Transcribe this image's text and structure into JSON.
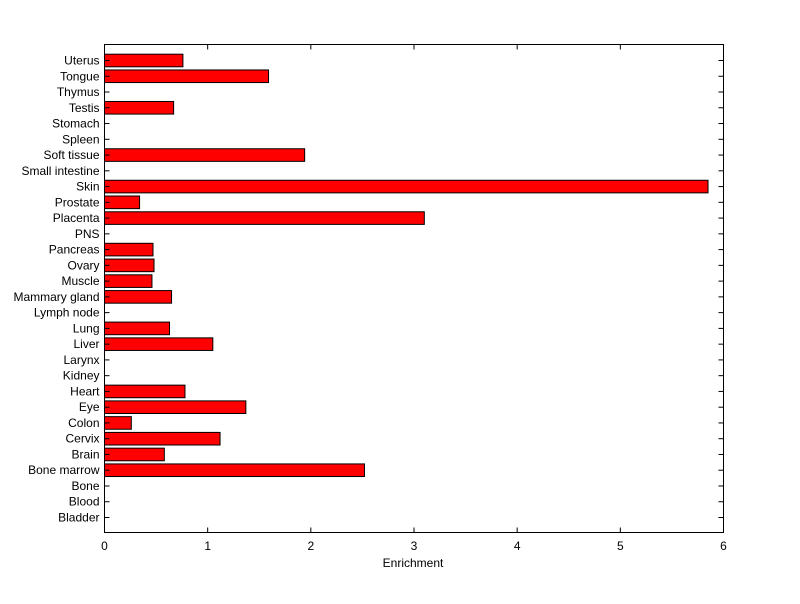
{
  "chart_data": {
    "type": "bar",
    "orientation": "horizontal",
    "title": "",
    "xlabel": "Enrichment",
    "ylabel": "",
    "xlim": [
      0,
      6
    ],
    "xticks": [
      "0",
      "1",
      "2",
      "3",
      "4",
      "5",
      "6"
    ],
    "grid": false,
    "bar_color": "#ff0000",
    "bar_edge_color": "#000000",
    "categories": [
      "Uterus",
      "Tongue",
      "Thymus",
      "Testis",
      "Stomach",
      "Spleen",
      "Soft tissue",
      "Small intestine",
      "Skin",
      "Prostate",
      "Placenta",
      "PNS",
      "Pancreas",
      "Ovary",
      "Muscle",
      "Mammary gland",
      "Lymph node",
      "Lung",
      "Liver",
      "Larynx",
      "Kidney",
      "Heart",
      "Eye",
      "Colon",
      "Cervix",
      "Brain",
      "Bone marrow",
      "Bone",
      "Blood",
      "Bladder"
    ],
    "values": [
      0.76,
      1.59,
      0,
      0.67,
      0,
      0,
      1.94,
      0,
      5.85,
      0.34,
      3.1,
      0,
      0.47,
      0.48,
      0.46,
      0.65,
      0,
      0.63,
      1.05,
      0,
      0,
      0.78,
      1.37,
      0.26,
      1.12,
      0.58,
      2.52,
      0,
      0,
      0
    ]
  }
}
